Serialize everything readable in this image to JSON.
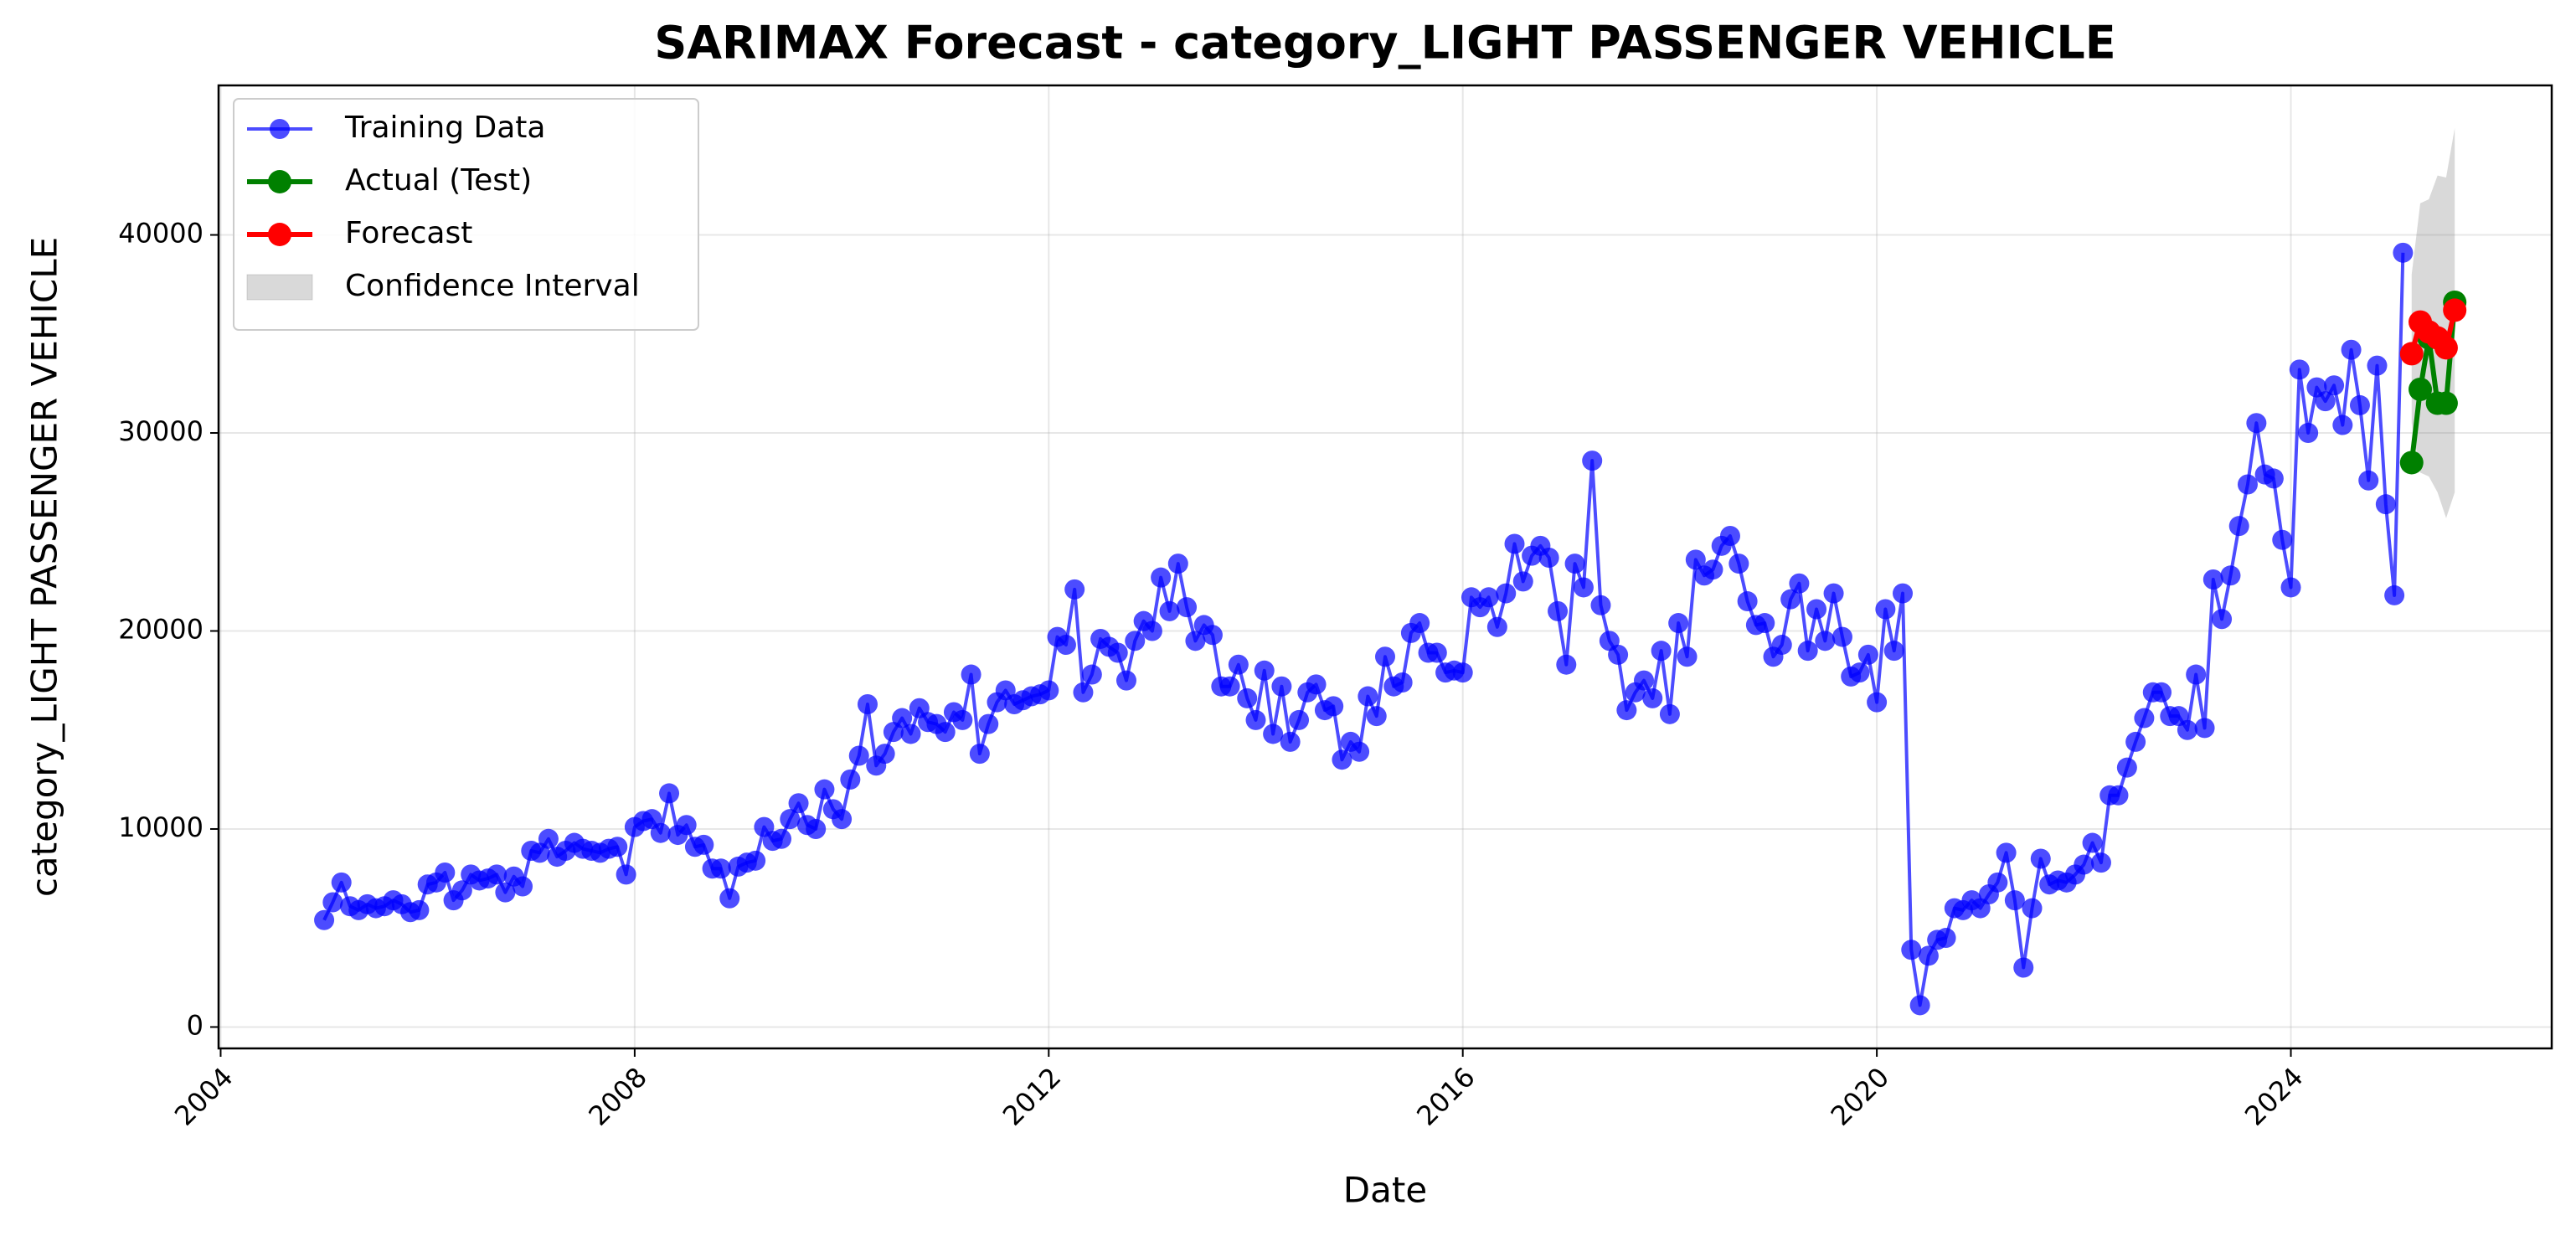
{
  "chart_data": {
    "type": "line",
    "title": "SARIMAX Forecast - category_LIGHT PASSENGER VEHICLE",
    "x_label": "Date",
    "y_label": "category_LIGHT PASSENGER VEHICLE",
    "xlim": [
      2003.98,
      2026.52
    ],
    "ylim": [
      -1080,
      47550
    ],
    "xticks": [
      2004,
      2008,
      2012,
      2016,
      2020,
      2024
    ],
    "yticks": [
      0,
      10000,
      20000,
      30000,
      40000
    ],
    "grid": true,
    "legend": "upper left",
    "series": [
      {
        "name": "Training Data",
        "color": "#0000ff",
        "marker": "o",
        "x": [
          2005,
          2005.083,
          2005.167,
          2005.25,
          2005.333,
          2005.417,
          2005.5,
          2005.583,
          2005.667,
          2005.75,
          2005.833,
          2005.917,
          2006,
          2006.083,
          2006.167,
          2006.25,
          2006.333,
          2006.417,
          2006.5,
          2006.583,
          2006.667,
          2006.75,
          2006.833,
          2006.917,
          2007,
          2007.083,
          2007.167,
          2007.25,
          2007.333,
          2007.417,
          2007.5,
          2007.583,
          2007.667,
          2007.75,
          2007.833,
          2007.917,
          2008,
          2008.083,
          2008.167,
          2008.25,
          2008.333,
          2008.417,
          2008.5,
          2008.583,
          2008.667,
          2008.75,
          2008.833,
          2008.917,
          2009,
          2009.083,
          2009.167,
          2009.25,
          2009.333,
          2009.417,
          2009.5,
          2009.583,
          2009.667,
          2009.75,
          2009.833,
          2009.917,
          2010,
          2010.083,
          2010.167,
          2010.25,
          2010.333,
          2010.417,
          2010.5,
          2010.583,
          2010.667,
          2010.75,
          2010.833,
          2010.917,
          2011,
          2011.083,
          2011.167,
          2011.25,
          2011.333,
          2011.417,
          2011.5,
          2011.583,
          2011.667,
          2011.75,
          2011.833,
          2011.917,
          2012,
          2012.083,
          2012.167,
          2012.25,
          2012.333,
          2012.417,
          2012.5,
          2012.583,
          2012.667,
          2012.75,
          2012.833,
          2012.917,
          2013,
          2013.083,
          2013.167,
          2013.25,
          2013.333,
          2013.417,
          2013.5,
          2013.583,
          2013.667,
          2013.75,
          2013.833,
          2013.917,
          2014,
          2014.083,
          2014.167,
          2014.25,
          2014.333,
          2014.417,
          2014.5,
          2014.583,
          2014.667,
          2014.75,
          2014.833,
          2014.917,
          2015,
          2015.083,
          2015.167,
          2015.25,
          2015.333,
          2015.417,
          2015.5,
          2015.583,
          2015.667,
          2015.75,
          2015.833,
          2015.917,
          2016,
          2016.083,
          2016.167,
          2016.25,
          2016.333,
          2016.417,
          2016.5,
          2016.583,
          2016.667,
          2016.75,
          2016.833,
          2016.917,
          2017,
          2017.083,
          2017.167,
          2017.25,
          2017.333,
          2017.417,
          2017.5,
          2017.583,
          2017.667,
          2017.75,
          2017.833,
          2017.917,
          2018,
          2018.083,
          2018.167,
          2018.25,
          2018.333,
          2018.417,
          2018.5,
          2018.583,
          2018.667,
          2018.75,
          2018.833,
          2018.917,
          2019,
          2019.083,
          2019.167,
          2019.25,
          2019.333,
          2019.417,
          2019.5,
          2019.583,
          2019.667,
          2019.75,
          2019.833,
          2019.917,
          2020,
          2020.083,
          2020.167,
          2020.25,
          2020.333,
          2020.417,
          2020.5,
          2020.583,
          2020.667,
          2020.75,
          2020.833,
          2020.917,
          2021,
          2021.083,
          2021.167,
          2021.25,
          2021.333,
          2021.417,
          2021.5,
          2021.583,
          2021.667,
          2021.75,
          2021.833,
          2021.917,
          2022,
          2022.083,
          2022.167,
          2022.25,
          2022.333,
          2022.417,
          2022.5,
          2022.583,
          2022.667,
          2022.75,
          2022.833,
          2022.917,
          2023,
          2023.083,
          2023.167,
          2023.25,
          2023.333,
          2023.417,
          2023.5,
          2023.583,
          2023.667,
          2023.75,
          2023.833,
          2023.917,
          2024,
          2024.083,
          2024.167,
          2024.25,
          2024.333,
          2024.417,
          2024.5,
          2024.583,
          2024.667,
          2024.75,
          2024.833,
          2024.917,
          2025,
          2025.083
        ],
        "values": [
          5400,
          6300,
          7300,
          6100,
          5900,
          6200,
          6000,
          6100,
          6400,
          6200,
          5800,
          5900,
          7200,
          7300,
          7800,
          6400,
          6900,
          7700,
          7400,
          7500,
          7700,
          6800,
          7600,
          7100,
          8900,
          8800,
          9500,
          8600,
          8900,
          9300,
          9000,
          8900,
          8800,
          9000,
          9100,
          7700,
          10100,
          10400,
          10500,
          9800,
          11800,
          9700,
          10200,
          9100,
          9200,
          8000,
          8000,
          6500,
          8100,
          8300,
          8400,
          10100,
          9400,
          9500,
          10500,
          11300,
          10200,
          10000,
          12000,
          11000,
          10500,
          12500,
          13700,
          16300,
          13200,
          13800,
          14900,
          15600,
          14800,
          16100,
          15400,
          15300,
          14900,
          15900,
          15500,
          17800,
          13800,
          15300,
          16400,
          17000,
          16300,
          16500,
          16700,
          16800,
          17000,
          19700,
          19300,
          22100,
          16900,
          17800,
          19600,
          19200,
          18900,
          17500,
          19500,
          20500,
          20000,
          22700,
          21000,
          23400,
          21200,
          19500,
          20300,
          19800,
          17200,
          17200,
          18300,
          16600,
          15500,
          18000,
          14800,
          17200,
          14400,
          15500,
          16900,
          17300,
          16000,
          16200,
          13500,
          14400,
          13900,
          16700,
          15700,
          18700,
          17200,
          17400,
          19900,
          20400,
          18900,
          18900,
          17900,
          18000,
          17900,
          21700,
          21200,
          21700,
          20200,
          21900,
          24400,
          22500,
          23800,
          24300,
          23700,
          21000,
          18300,
          23400,
          22200,
          28600,
          21300,
          19500,
          18800,
          16000,
          16900,
          17500,
          16600,
          19000,
          15800,
          20400,
          18700,
          23600,
          22800,
          23100,
          24300,
          24800,
          23400,
          21500,
          20300,
          20400,
          18700,
          19300,
          21600,
          22400,
          19000,
          21100,
          19500,
          21900,
          19700,
          17700,
          17900,
          18800,
          16400,
          21100,
          19000,
          21900,
          3900,
          1100,
          3600,
          4400,
          4500,
          6000,
          5900,
          6400,
          6000,
          6700,
          7300,
          8800,
          6400,
          3000,
          6000,
          8500,
          7200,
          7400,
          7300,
          7700,
          8200,
          9300,
          8300,
          11700,
          11700,
          13100,
          14400,
          15600,
          16900,
          16900,
          15700,
          15700,
          15000,
          17800,
          15100,
          22600,
          20600,
          22800,
          25300,
          27400,
          30500,
          27900,
          27700,
          24600,
          22200,
          33200,
          30000,
          32300,
          31600,
          32400,
          30400,
          34200,
          31400,
          27600,
          33400,
          26400,
          21800,
          39100
        ]
      },
      {
        "name": "Actual (Test)",
        "color": "#008000",
        "marker": "o",
        "x": [
          2025.167,
          2025.25,
          2025.333,
          2025.417,
          2025.5,
          2025.583
        ],
        "values": [
          28500,
          32200,
          34800,
          31500,
          31500,
          36600
        ]
      },
      {
        "name": "Forecast",
        "color": "#ff0000",
        "marker": "o",
        "x": [
          2025.167,
          2025.25,
          2025.333,
          2025.417,
          2025.5,
          2025.583
        ],
        "values": [
          34000,
          35600,
          35100,
          34800,
          34300,
          36200
        ]
      }
    ],
    "band": {
      "name": "Confidence Interval",
      "color": "#808080",
      "x": [
        2025.167,
        2025.25,
        2025.333,
        2025.417,
        2025.5,
        2025.583
      ],
      "lower": [
        30500,
        28000,
        27800,
        27000,
        25700,
        27000
      ],
      "upper": [
        38000,
        41600,
        41800,
        43000,
        42900,
        45400
      ]
    }
  }
}
